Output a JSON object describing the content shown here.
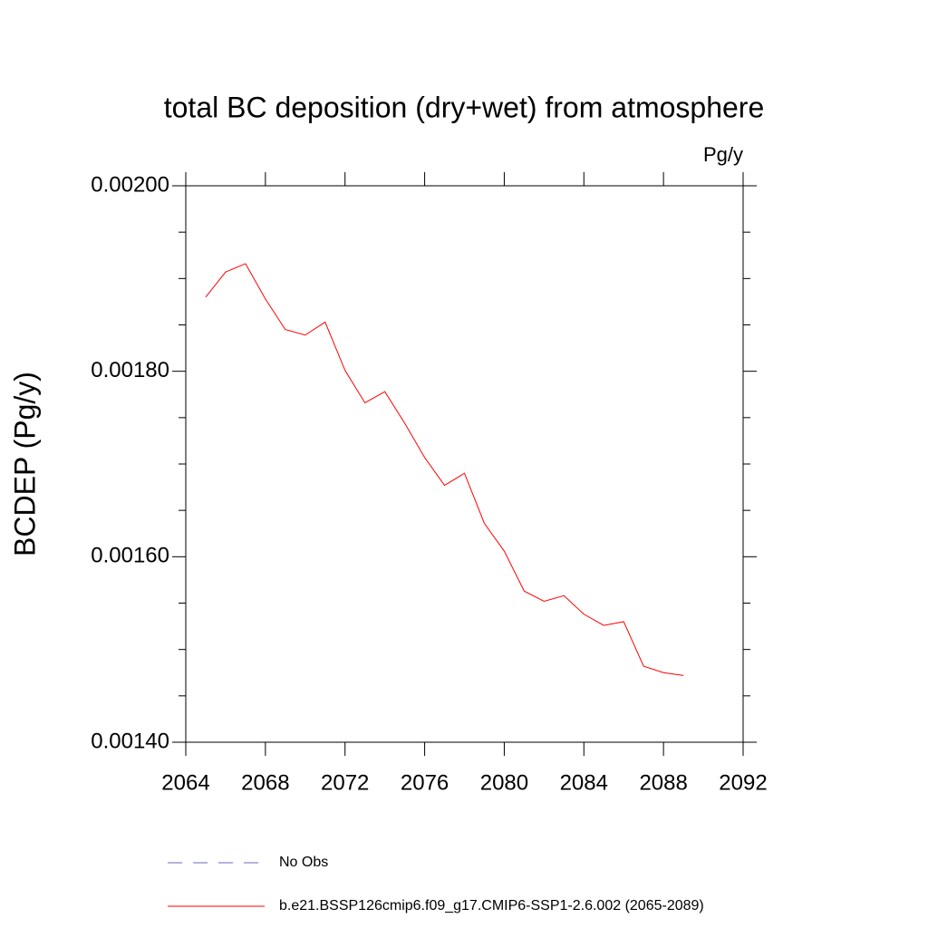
{
  "chart_data": {
    "type": "line",
    "title": "total BC deposition (dry+wet) from atmosphere",
    "units_label": "Pg/y",
    "ylabel": "BCDEP  (Pg/y)",
    "x": [
      2065,
      2066,
      2067,
      2068,
      2069,
      2070,
      2071,
      2072,
      2073,
      2074,
      2075,
      2076,
      2077,
      2078,
      2079,
      2080,
      2081,
      2082,
      2083,
      2084,
      2085,
      2086,
      2087,
      2088,
      2089
    ],
    "series": [
      {
        "name": "No Obs",
        "color": "#6a6ab8",
        "dash": true,
        "values": [
          null,
          null,
          null,
          null,
          null,
          null,
          null,
          null,
          null,
          null,
          null,
          null,
          null,
          null,
          null,
          null,
          null,
          null,
          null,
          null,
          null,
          null,
          null,
          null,
          null
        ]
      },
      {
        "name": "b.e21.BSSP126cmip6.f09_g17.CMIP6-SSP1-2.6.002 (2065-2089)",
        "color": "#ff0000",
        "dash": false,
        "values": [
          0.00188,
          0.001907,
          0.001916,
          0.001878,
          0.001845,
          0.001839,
          0.001853,
          0.001801,
          0.001766,
          0.001778,
          0.001744,
          0.001707,
          0.001677,
          0.00169,
          0.001636,
          0.001606,
          0.001563,
          0.001552,
          0.001558,
          0.001538,
          0.001526,
          0.00153,
          0.001482,
          0.001475,
          0.001472
        ]
      }
    ],
    "xlim": [
      2064,
      2092
    ],
    "xticks": [
      2064,
      2068,
      2072,
      2076,
      2080,
      2084,
      2088,
      2092
    ],
    "ylim": [
      0.0014,
      0.002
    ],
    "yticks": [
      {
        "value": 0.0014,
        "label": "0.00140"
      },
      {
        "value": 0.0016,
        "label": "0.00160"
      },
      {
        "value": 0.0018,
        "label": "0.00180"
      },
      {
        "value": 0.002,
        "label": "0.00200"
      }
    ],
    "yminorticks": [
      0.00145,
      0.0015,
      0.00155,
      0.00165,
      0.0017,
      0.00175,
      0.00185,
      0.0019,
      0.00195
    ]
  }
}
